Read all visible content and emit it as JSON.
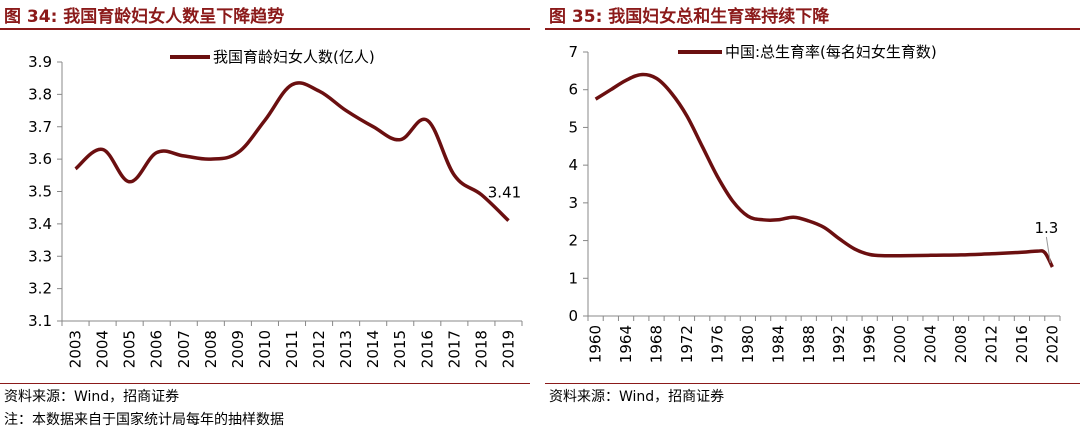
{
  "source_text": "资料来源：Wind，招商证券",
  "note_text": "注：本数据来自于国家统计局每年的抽样数据",
  "chart_data": [
    {
      "type": "line",
      "figure_title": "图 34:  我国育龄妇女人数呈下降趋势",
      "legend": "我国育龄妇女人数(亿人)",
      "legend_position": "top-center",
      "line_color": "#6b0f10",
      "categories": [
        "2003",
        "2004",
        "2005",
        "2006",
        "2007",
        "2008",
        "2009",
        "2010",
        "2011",
        "2012",
        "2013",
        "2014",
        "2015",
        "2016",
        "2017",
        "2018",
        "2019"
      ],
      "values": [
        3.57,
        3.63,
        3.53,
        3.62,
        3.61,
        3.6,
        3.62,
        3.72,
        3.83,
        3.81,
        3.75,
        3.7,
        3.66,
        3.72,
        3.55,
        3.49,
        3.41
      ],
      "ylim": [
        3.1,
        3.9
      ],
      "yticks": [
        "3.1",
        "3.2",
        "3.3",
        "3.4",
        "3.5",
        "3.6",
        "3.7",
        "3.8",
        "3.9"
      ],
      "end_label": "3.41",
      "grid": false
    },
    {
      "type": "line",
      "figure_title": "图 35:  我国妇女总和生育率持续下降",
      "legend": "中国:总生育率(每名妇女生育数)",
      "legend_position": "top-center",
      "line_color": "#6b0f10",
      "xtick_labels": [
        "1960",
        "1964",
        "1968",
        "1972",
        "1976",
        "1980",
        "1984",
        "1988",
        "1992",
        "1996",
        "2000",
        "2004",
        "2008",
        "2012",
        "2016",
        "2020"
      ],
      "x": [
        1960,
        1962,
        1964,
        1966,
        1968,
        1970,
        1972,
        1974,
        1976,
        1978,
        1980,
        1982,
        1984,
        1986,
        1988,
        1990,
        1992,
        1994,
        1996,
        1998,
        2000,
        2004,
        2008,
        2012,
        2016,
        2018,
        2019,
        2020
      ],
      "values": [
        5.75,
        6.0,
        6.25,
        6.4,
        6.3,
        5.9,
        5.3,
        4.5,
        3.7,
        3.05,
        2.65,
        2.55,
        2.55,
        2.62,
        2.52,
        2.35,
        2.05,
        1.78,
        1.63,
        1.6,
        1.6,
        1.61,
        1.62,
        1.65,
        1.69,
        1.72,
        1.68,
        1.3
      ],
      "ylim": [
        0,
        7
      ],
      "yticks": [
        "0",
        "1",
        "2",
        "3",
        "4",
        "5",
        "6",
        "7"
      ],
      "end_label": "1.3",
      "grid": false
    }
  ]
}
